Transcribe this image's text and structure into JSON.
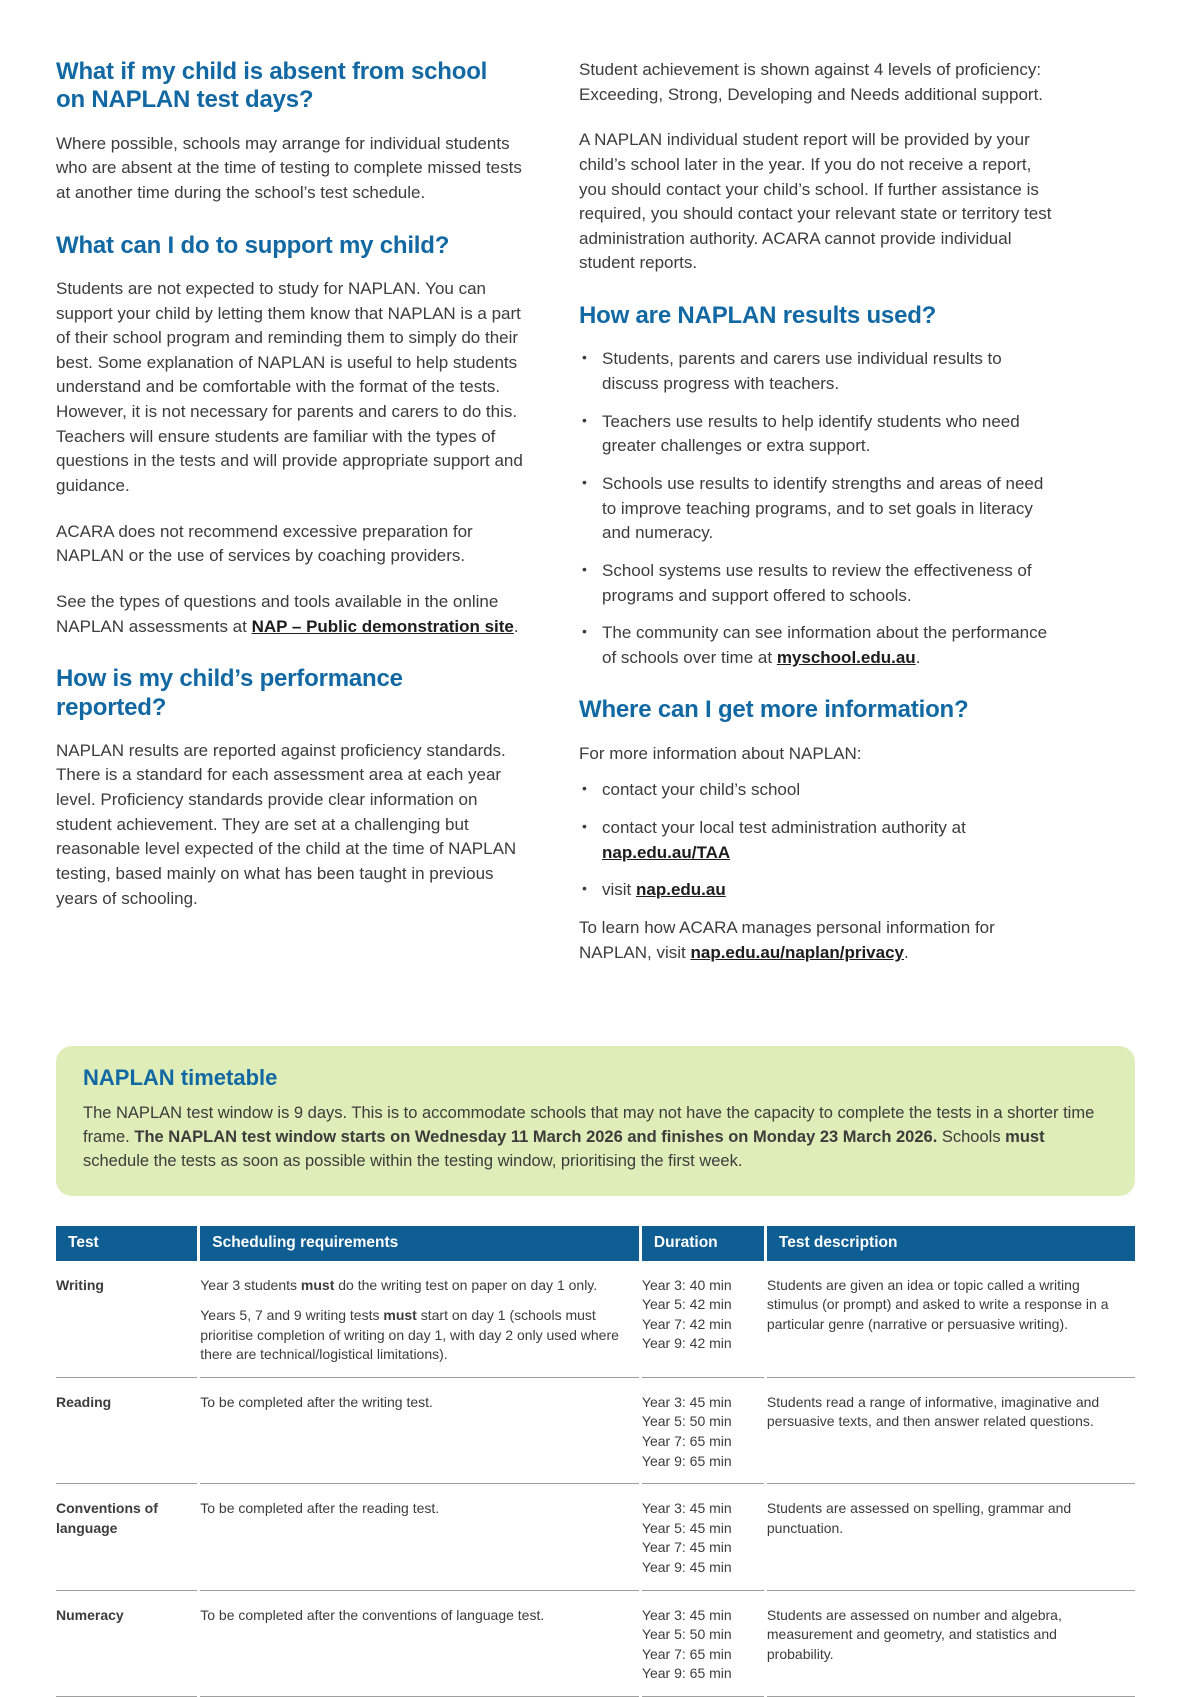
{
  "colors": {
    "accent": "#1268A3",
    "thead": "#0F5E93",
    "box-bg": "#DFEDB8",
    "ink": "#3C3C3C",
    "rule": "#9E9E9E",
    "link-ink": "#1D1D1D"
  },
  "left": {
    "absent": {
      "heading": "What if my child is absent from school on NAPLAN test days?",
      "p1": "Where possible, schools may arrange for individual students who are absent at the time of testing to complete missed tests at another time during the school’s test schedule."
    },
    "support": {
      "heading": "What can I do to support my child?",
      "p1": "Students are not expected to study for NAPLAN. You can support your child by letting them know that NAPLAN is a part of their school program and reminding them to simply do their best. Some explanation of NAPLAN is useful to help students understand and be comfortable with the format of the tests. However, it is not necessary for parents and carers to do this. Teachers will ensure students are familiar with the types of questions in the tests and will provide appropriate support and guidance.",
      "p2": "ACARA does not recommend excessive preparation for NAPLAN or the use of services by coaching providers.",
      "p3_pre": "See the types of questions and tools available in the online NAPLAN assessments at ",
      "p3_link": "NAP – Public demonstration site",
      "p3_post": "."
    },
    "reported": {
      "heading": "How is my child’s performance reported?",
      "p1": "NAPLAN results are reported against proficiency standards. There is a standard for each assessment area at each year level. Proficiency standards provide clear information on student achievement. They are set at a challenging but reasonable level expected of the child at the time of NAPLAN testing, based mainly on what has been taught in previous years of schooling."
    }
  },
  "right": {
    "p1": "Student achievement is shown against 4 levels of proficiency: Exceeding, Strong, Developing and Needs additional support.",
    "p2": "A NAPLAN individual student report will be provided by your child’s school later in the year. If you do not receive a report, you should contact your child’s school. If further assistance is required, you should contact your relevant state or territory test administration authority. ACARA cannot provide individual student reports.",
    "results": {
      "heading": "How are NAPLAN results used?",
      "bullets": [
        "Students, parents and carers use individual results to discuss progress with teachers.",
        "Teachers use results to help identify students who need greater challenges or extra support.",
        "Schools use results to identify strengths and areas of need to improve teaching programs, and to set goals in literacy and numeracy.",
        "School systems use results to review the effectiveness of programs and support offered to schools."
      ],
      "community_pre": "The community can see information about the performance of schools over time at ",
      "community_link": "myschool.edu.au",
      "community_post": "."
    },
    "info": {
      "heading": "Where can I get more information?",
      "intro": "For more information about NAPLAN:",
      "b1": "contact your child’s school",
      "b2_pre": "contact your local test administration authority at ",
      "b2_link": "nap.edu.au/TAA",
      "b3_pre": "visit ",
      "b3_link": "nap.edu.au",
      "p_pre": "To learn how ACARA manages personal information for NAPLAN, visit ",
      "p_link": "nap.edu.au/naplan/privacy",
      "p_post": "."
    }
  },
  "timetable": {
    "heading": "NAPLAN timetable",
    "t1": "The NAPLAN test window is 9 days. This is to accommodate schools that may not have the capacity to complete the tests in a shorter time frame. ",
    "t2": "The NAPLAN test window starts on Wednesday 11 March 2026 and finishes on Monday 23 March 2026.",
    "t3": " Schools ",
    "t4": "must",
    "t5": " schedule the tests as soon as possible within the testing window, prioritising the first week."
  },
  "table": {
    "headers": [
      "Test",
      "Scheduling requirements",
      "Duration",
      "Test description"
    ],
    "rows": [
      {
        "test": "Writing",
        "sched1": [
          "Year 3 students ",
          "must",
          " do the writing test on paper on day 1 only."
        ],
        "sched2": [
          "Years 5, 7 and 9 writing tests ",
          "must",
          " start on day 1 (schools must prioritise completion of writing on day 1, with day 2 only used where there are technical/logistical limitations)."
        ],
        "duration": [
          "Year 3: 40 min",
          "Year 5: 42 min",
          "Year 7: 42 min",
          "Year 9: 42 min"
        ],
        "description": "Students are given an idea or topic called a writing stimulus (or prompt) and asked to write a response in a particular genre (narrative or persuasive writing)."
      },
      {
        "test": "Reading",
        "sched": "To be completed after the writing test.",
        "duration": [
          "Year 3: 45 min",
          "Year 5: 50 min",
          "Year 7: 65 min",
          "Year 9: 65 min"
        ],
        "description": "Students read a range of informative, imaginative and persuasive texts, and then answer related questions."
      },
      {
        "test": "Conventions of language",
        "sched": "To be completed after the reading test.",
        "duration": [
          "Year 3: 45 min",
          "Year 5: 45 min",
          "Year 7: 45 min",
          "Year 9: 45 min"
        ],
        "description": "Students are assessed on spelling, grammar and punctuation."
      },
      {
        "test": "Numeracy",
        "sched": "To be completed after the conventions of language test.",
        "duration": [
          "Year 3: 45 min",
          "Year 5: 50 min",
          "Year 7: 65 min",
          "Year 9: 65 min"
        ],
        "description": "Students are assessed on number and algebra, measurement and geometry, and statistics and probability."
      }
    ]
  }
}
